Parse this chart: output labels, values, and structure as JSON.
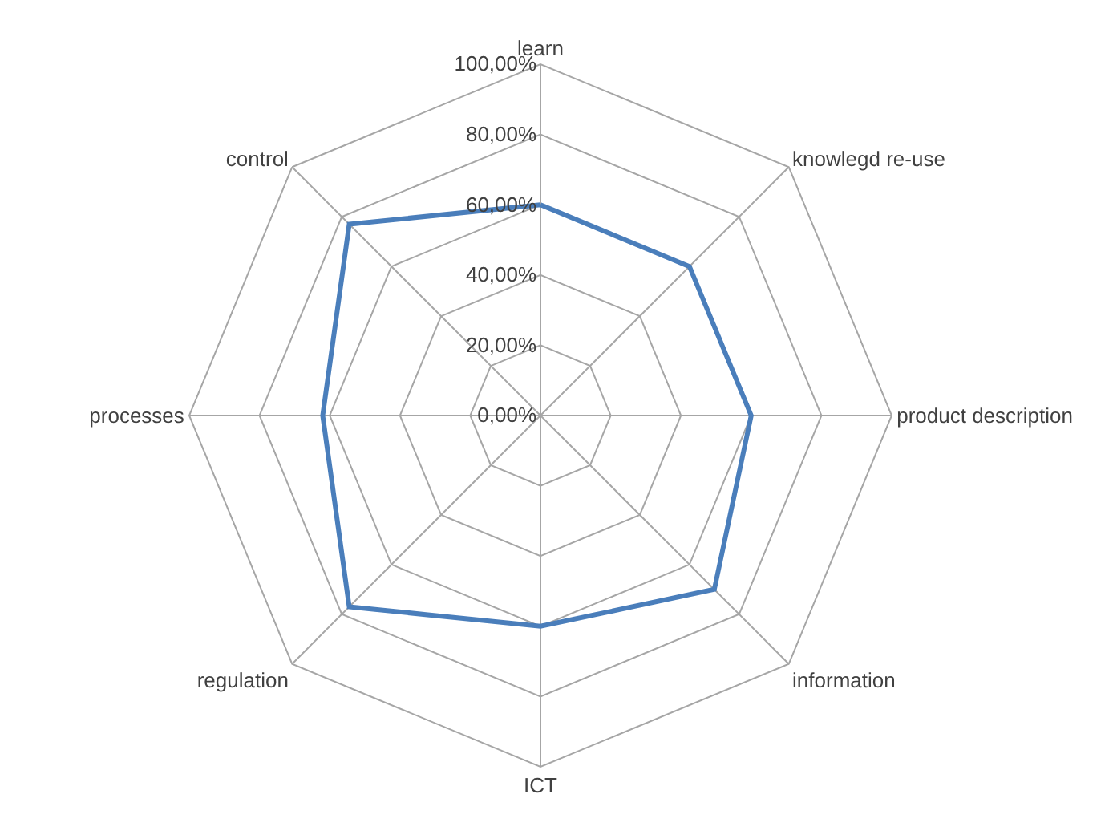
{
  "chart_data": {
    "type": "radar",
    "categories": [
      "learn",
      "knowlegd re-use",
      "product description",
      "information",
      "ICT",
      "regulation",
      "processes",
      "control"
    ],
    "series": [
      {
        "color": "#4a7ebb",
        "values": [
          0.6,
          0.6,
          0.6,
          0.7,
          0.6,
          0.77,
          0.62,
          0.77
        ]
      }
    ],
    "ylim": [
      0,
      1
    ],
    "yticks": [
      {
        "value": 0,
        "label": "0,00%"
      },
      {
        "value": 0.2,
        "label": "20,00%"
      },
      {
        "value": 0.4,
        "label": "40,00%"
      },
      {
        "value": 0.6,
        "label": "60,00%"
      },
      {
        "value": 0.8,
        "label": "80,00%"
      },
      {
        "value": 1,
        "label": "100,00%"
      }
    ],
    "grid": true,
    "marker": "none"
  }
}
